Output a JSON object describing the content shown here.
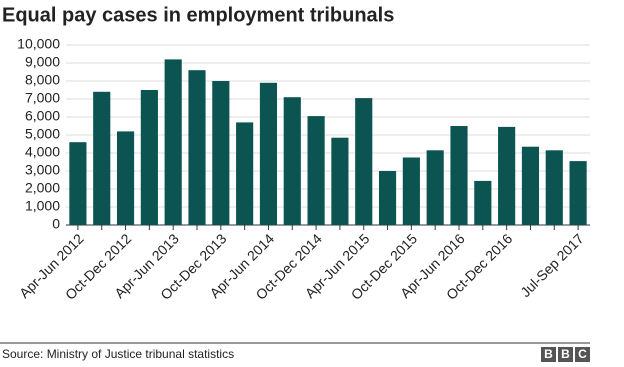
{
  "chart_data": {
    "type": "bar",
    "title": "Equal pay cases in employment tribunals",
    "categories": [
      "Apr-Jun 2012",
      null,
      "Oct-Dec 2012",
      null,
      "Apr-Jun 2013",
      null,
      "Oct-Dec 2013",
      null,
      "Apr-Jun 2014",
      null,
      "Oct-Dec 2014",
      null,
      "Apr-Jun 2015",
      null,
      "Oct-Dec 2015",
      null,
      "Apr-Jun 2016",
      null,
      "Oct-Dec 2016",
      null,
      null,
      "Jul-Sep 2017"
    ],
    "values": [
      4600,
      7400,
      5200,
      7500,
      9200,
      8600,
      8000,
      5700,
      7900,
      7100,
      6050,
      4850,
      7050,
      3000,
      3750,
      4150,
      5500,
      2450,
      5450,
      4350,
      4150,
      3550
    ],
    "color": "#0c5452",
    "ylim": [
      0,
      10000
    ],
    "yticks": [
      0,
      {
        "value": 1000,
        "label": "1,000"
      },
      {
        "value": 2000,
        "label": "2,000"
      },
      {
        "value": 3000,
        "label": "3,000"
      },
      {
        "value": 4000,
        "label": "4,000"
      },
      {
        "value": 5000,
        "label": "5,000"
      },
      {
        "value": 6000,
        "label": "6,000"
      },
      {
        "value": 7000,
        "label": "7,000"
      },
      {
        "value": 8000,
        "label": "8,000"
      },
      {
        "value": 9000,
        "label": "9,000"
      },
      {
        "value": 10000,
        "label": "10,000"
      }
    ],
    "grid": true,
    "source": "Source: Ministry of Justice tribunal statistics",
    "logo": [
      "B",
      "B",
      "C"
    ]
  }
}
